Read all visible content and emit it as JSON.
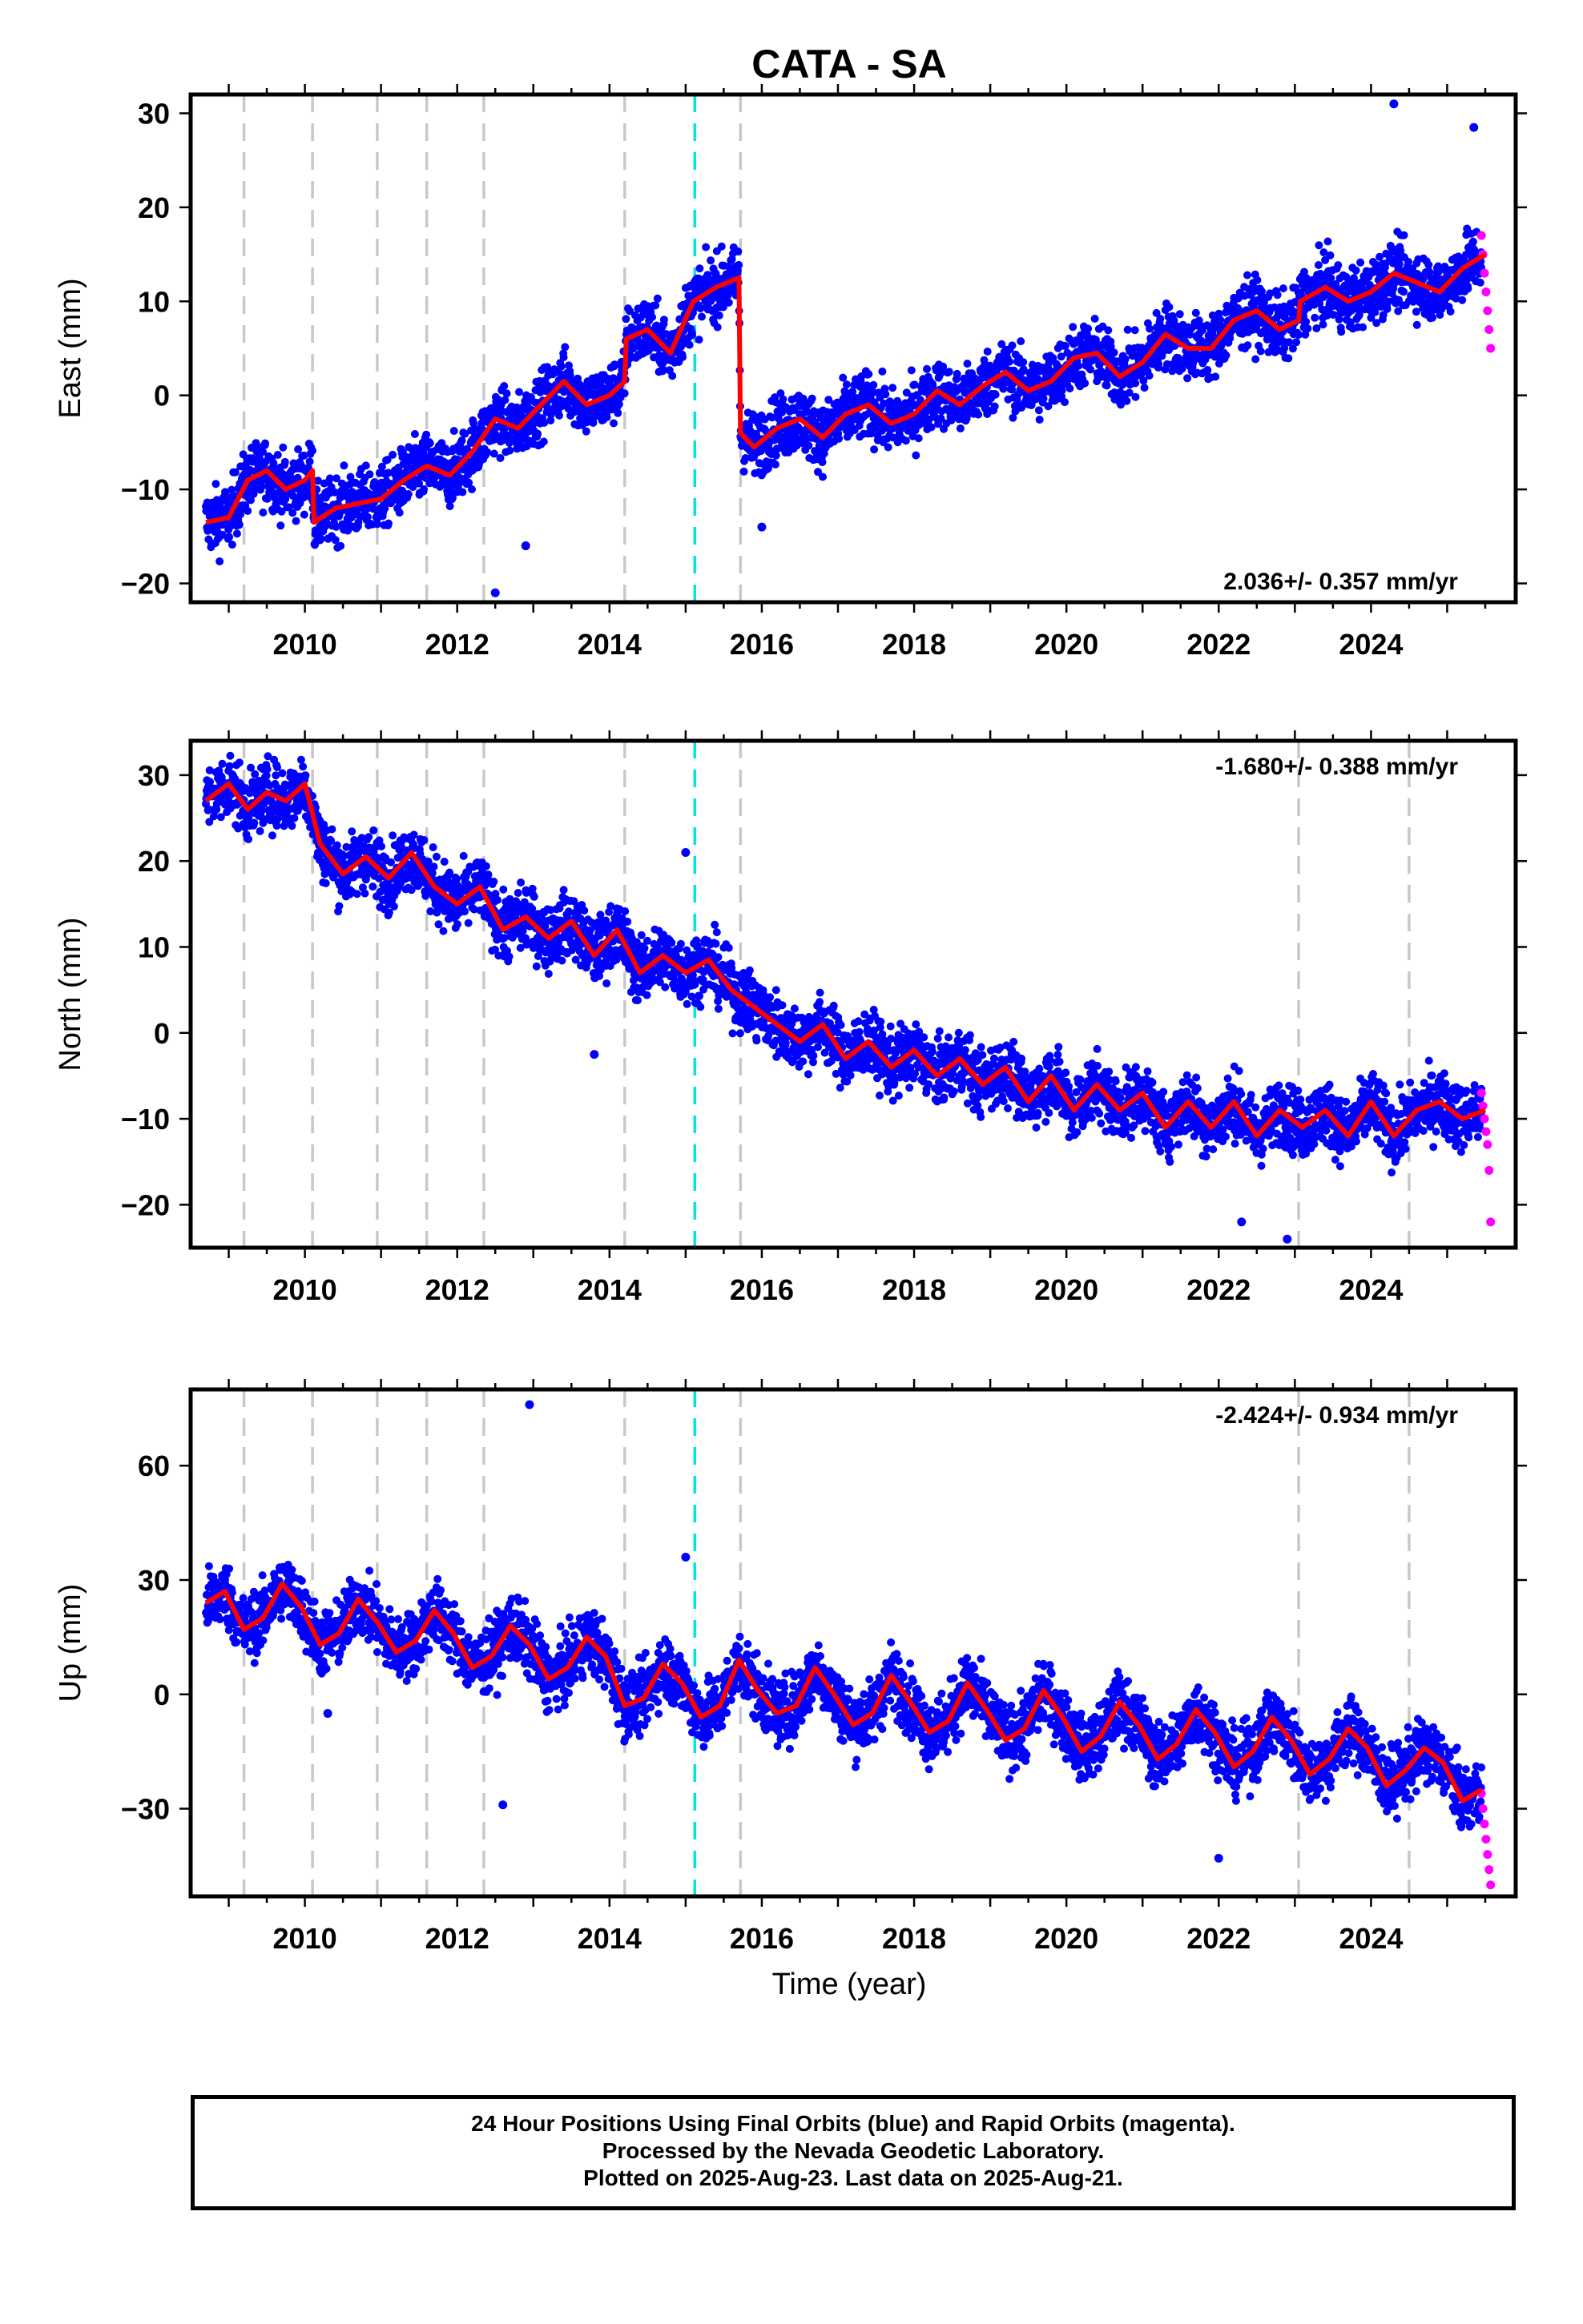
{
  "title": "CATA - SA",
  "xlabel": "Time (year)",
  "footer": {
    "line1": "24 Hour Positions Using Final Orbits (blue) and Rapid Orbits (magenta).",
    "line2": "Processed by the Nevada Geodetic Laboratory.",
    "line3": "Plotted on 2025-Aug-23. Last data on 2025-Aug-21."
  },
  "colors": {
    "final": "#0000ff",
    "rapid": "#ff00ff",
    "fit": "#ff0000",
    "event": "#c8c8c8",
    "cyan_event": "#00e5e5"
  },
  "chart_data": [
    {
      "type": "scatter",
      "component": "east",
      "ylabel": "East (mm)",
      "rate_label": "2.036+/- 0.357 mm/yr",
      "xlim": [
        2008.5,
        2025.9
      ],
      "ylim": [
        -22,
        32
      ],
      "yticks": [
        -20,
        -10,
        0,
        10,
        20,
        30
      ],
      "xticks": [
        2010,
        2012,
        2014,
        2016,
        2018,
        2020,
        2022,
        2024
      ],
      "event_lines": [
        2009.2,
        2010.1,
        2010.95,
        2011.6,
        2012.35,
        2014.2,
        2015.72
      ],
      "cyan_lines": [
        2015.12
      ],
      "fit": {
        "x": [
          2008.7,
          2009.0,
          2009.25,
          2009.5,
          2009.75,
          2010.0,
          2010.1,
          2010.12,
          2010.4,
          2010.7,
          2011.0,
          2011.3,
          2011.6,
          2011.9,
          2012.2,
          2012.5,
          2012.8,
          2013.1,
          2013.4,
          2013.7,
          2014.0,
          2014.2,
          2014.22,
          2014.5,
          2014.8,
          2015.1,
          2015.4,
          2015.7,
          2015.72,
          2015.9,
          2016.2,
          2016.5,
          2016.8,
          2017.1,
          2017.4,
          2017.7,
          2018.0,
          2018.3,
          2018.6,
          2018.9,
          2019.2,
          2019.5,
          2019.8,
          2020.1,
          2020.4,
          2020.7,
          2021.0,
          2021.3,
          2021.6,
          2021.9,
          2022.2,
          2022.5,
          2022.8,
          2023.05,
          2023.07,
          2023.4,
          2023.7,
          2024.0,
          2024.3,
          2024.6,
          2024.9,
          2025.2,
          2025.5
        ],
        "y": [
          -13.5,
          -13,
          -9,
          -8,
          -10,
          -9,
          -8,
          -13.5,
          -12,
          -11.5,
          -11,
          -9,
          -7.5,
          -8.5,
          -6,
          -2.5,
          -3.5,
          -1,
          1.5,
          -1,
          0,
          1.5,
          6,
          7,
          4.5,
          10,
          11.5,
          12.5,
          -4,
          -5.5,
          -3.5,
          -2.5,
          -4.5,
          -2,
          -1,
          -3,
          -2,
          0.5,
          -1,
          1,
          2.5,
          0.5,
          1.5,
          4,
          4.5,
          2,
          3.5,
          6.5,
          5,
          5,
          8,
          9,
          7,
          8,
          10,
          11.5,
          10,
          11,
          13,
          12,
          11,
          13.5,
          15
        ]
      },
      "rapid": {
        "x": [
          2025.45,
          2025.47,
          2025.49,
          2025.51,
          2025.53,
          2025.55,
          2025.57
        ],
        "y": [
          17,
          15,
          13,
          11,
          9,
          7,
          5
        ]
      },
      "outliers": {
        "x": [
          2012.5,
          2012.9,
          2016.0,
          2024.3,
          2025.35
        ],
        "y": [
          -21,
          -16,
          -14,
          31,
          28.5
        ]
      }
    },
    {
      "type": "scatter",
      "component": "north",
      "ylabel": "North (mm)",
      "rate_label": "-1.680+/- 0.388 mm/yr",
      "xlim": [
        2008.5,
        2025.9
      ],
      "ylim": [
        -25,
        34
      ],
      "yticks": [
        -20,
        -10,
        0,
        10,
        20,
        30
      ],
      "xticks": [
        2010,
        2012,
        2014,
        2016,
        2018,
        2020,
        2022,
        2024
      ],
      "event_lines": [
        2009.2,
        2010.1,
        2010.95,
        2011.6,
        2012.35,
        2014.2,
        2015.72,
        2023.05,
        2024.5
      ],
      "cyan_lines": [
        2015.12
      ],
      "fit": {
        "x": [
          2008.7,
          2009.0,
          2009.25,
          2009.5,
          2009.75,
          2010.0,
          2010.2,
          2010.5,
          2010.8,
          2011.1,
          2011.4,
          2011.7,
          2012.0,
          2012.3,
          2012.6,
          2012.9,
          2013.2,
          2013.5,
          2013.8,
          2014.1,
          2014.4,
          2014.7,
          2015.0,
          2015.3,
          2015.6,
          2015.9,
          2016.2,
          2016.5,
          2016.8,
          2017.1,
          2017.4,
          2017.7,
          2018.0,
          2018.3,
          2018.6,
          2018.9,
          2019.2,
          2019.5,
          2019.8,
          2020.1,
          2020.4,
          2020.7,
          2021.0,
          2021.3,
          2021.6,
          2021.9,
          2022.2,
          2022.5,
          2022.8,
          2023.1,
          2023.4,
          2023.7,
          2024.0,
          2024.3,
          2024.6,
          2024.9,
          2025.2,
          2025.5
        ],
        "y": [
          27,
          29,
          26,
          28,
          27,
          29,
          22,
          18.5,
          20.5,
          18,
          21,
          17,
          15,
          17,
          12,
          13.5,
          11,
          13,
          9,
          12,
          7,
          9,
          7,
          8.5,
          5,
          3,
          1,
          -1,
          1,
          -3,
          -1,
          -4,
          -2,
          -5,
          -3,
          -6,
          -4,
          -8,
          -5,
          -9,
          -6,
          -9,
          -7,
          -11,
          -8,
          -11,
          -8,
          -12,
          -9,
          -11,
          -9,
          -12,
          -8,
          -12,
          -9,
          -8,
          -10,
          -9
        ]
      },
      "rapid": {
        "x": [
          2025.45,
          2025.47,
          2025.49,
          2025.51,
          2025.53,
          2025.55,
          2025.57
        ],
        "y": [
          -7,
          -8.5,
          -10,
          -11.5,
          -13,
          -16,
          -22
        ]
      },
      "outliers": {
        "x": [
          2015.0,
          2013.8,
          2022.3,
          2022.9
        ],
        "y": [
          21,
          -2.5,
          -22,
          -24
        ]
      }
    },
    {
      "type": "scatter",
      "component": "up",
      "ylabel": "Up (mm)",
      "rate_label": "-2.424+/- 0.934 mm/yr",
      "xlim": [
        2008.5,
        2025.9
      ],
      "ylim": [
        -53,
        80
      ],
      "yticks": [
        -30,
        0,
        30,
        60
      ],
      "xticks": [
        2010,
        2012,
        2014,
        2016,
        2018,
        2020,
        2022,
        2024
      ],
      "event_lines": [
        2009.2,
        2010.1,
        2010.95,
        2011.6,
        2012.35,
        2014.2,
        2015.72,
        2023.05,
        2024.5
      ],
      "cyan_lines": [
        2015.12
      ],
      "fit": {
        "x": [
          2008.7,
          2008.95,
          2009.2,
          2009.45,
          2009.7,
          2009.95,
          2010.2,
          2010.45,
          2010.7,
          2010.95,
          2011.2,
          2011.45,
          2011.7,
          2011.95,
          2012.2,
          2012.45,
          2012.7,
          2012.95,
          2013.2,
          2013.45,
          2013.7,
          2013.95,
          2014.2,
          2014.45,
          2014.7,
          2014.95,
          2015.2,
          2015.45,
          2015.7,
          2015.95,
          2016.2,
          2016.45,
          2016.7,
          2016.95,
          2017.2,
          2017.45,
          2017.7,
          2017.95,
          2018.2,
          2018.45,
          2018.7,
          2018.95,
          2019.2,
          2019.45,
          2019.7,
          2019.95,
          2020.2,
          2020.45,
          2020.7,
          2020.95,
          2021.2,
          2021.45,
          2021.7,
          2021.95,
          2022.2,
          2022.45,
          2022.7,
          2022.95,
          2023.2,
          2023.45,
          2023.7,
          2023.95,
          2024.2,
          2024.45,
          2024.7,
          2024.95,
          2025.2,
          2025.45
        ],
        "y": [
          24,
          27,
          17,
          20,
          29,
          23,
          13,
          16,
          25,
          19,
          11,
          14,
          22,
          16,
          7,
          10,
          18,
          13,
          4,
          7,
          15,
          10,
          -3,
          -1,
          8,
          3,
          -6,
          -3,
          9,
          1,
          -5,
          -3,
          7,
          0,
          -8,
          -5,
          5,
          -2,
          -10,
          -7,
          3,
          -4,
          -12,
          -9,
          1,
          -6,
          -15,
          -11,
          -2,
          -8,
          -17,
          -13,
          -4,
          -10,
          -19,
          -15,
          -6,
          -12,
          -21,
          -17,
          -9,
          -14,
          -24,
          -20,
          -14,
          -18,
          -28,
          -25
        ]
      },
      "rapid": {
        "x": [
          2025.45,
          2025.47,
          2025.49,
          2025.51,
          2025.53,
          2025.55,
          2025.57
        ],
        "y": [
          -26,
          -30,
          -34,
          -38,
          -42,
          -46,
          -50
        ]
      },
      "outliers": {
        "x": [
          2012.95,
          2012.6,
          2015.0,
          2010.3,
          2022.0
        ],
        "y": [
          76,
          -29,
          36,
          -5,
          -43
        ]
      }
    }
  ]
}
